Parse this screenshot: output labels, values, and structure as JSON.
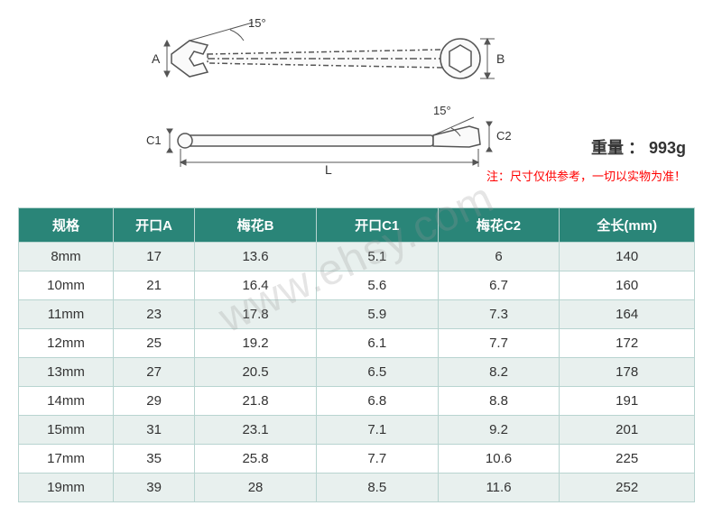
{
  "diagram": {
    "angle_top": "15°",
    "angle_side": "15°",
    "label_A": "A",
    "label_B": "B",
    "label_C1": "C1",
    "label_C2": "C2",
    "label_L": "L",
    "stroke": "#555555",
    "stroke_width": 1.5
  },
  "weight_label": "重量 ： 993g",
  "note_text": "注：尺寸仅供参考，一切以实物为准！",
  "watermark": "www.ehsy.com",
  "table": {
    "header_bg": "#2a8578",
    "header_color": "#ffffff",
    "row_odd_bg": "#e8f0ee",
    "row_even_bg": "#ffffff",
    "border_color": "#b8d4d0",
    "columns": [
      "规格",
      "开口A",
      "梅花B",
      "开口C1",
      "梅花C2",
      "全长(mm)"
    ],
    "col_widths": [
      "14%",
      "12%",
      "18%",
      "18%",
      "18%",
      "20%"
    ],
    "rows": [
      [
        "8mm",
        "17",
        "13.6",
        "5.1",
        "6",
        "140"
      ],
      [
        "10mm",
        "21",
        "16.4",
        "5.6",
        "6.7",
        "160"
      ],
      [
        "11mm",
        "23",
        "17.8",
        "5.9",
        "7.3",
        "164"
      ],
      [
        "12mm",
        "25",
        "19.2",
        "6.1",
        "7.7",
        "172"
      ],
      [
        "13mm",
        "27",
        "20.5",
        "6.5",
        "8.2",
        "178"
      ],
      [
        "14mm",
        "29",
        "21.8",
        "6.8",
        "8.8",
        "191"
      ],
      [
        "15mm",
        "31",
        "23.1",
        "7.1",
        "9.2",
        "201"
      ],
      [
        "17mm",
        "35",
        "25.8",
        "7.7",
        "10.6",
        "225"
      ],
      [
        "19mm",
        "39",
        "28",
        "8.5",
        "11.6",
        "252"
      ]
    ]
  }
}
